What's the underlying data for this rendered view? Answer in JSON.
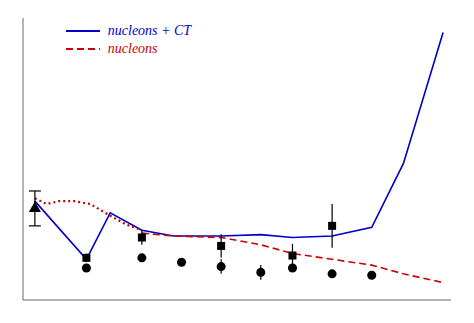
{
  "chart_data": {
    "type": "line",
    "tick_labels": false,
    "legend": "upper left",
    "xlim": [
      0.0,
      1.08
    ],
    "ylim": [
      0.38,
      1.35
    ],
    "xticks": [
      0,
      0.2,
      0.4,
      0.6,
      0.8,
      1.0
    ],
    "yticks": [
      0.4,
      0.5,
      0.6,
      0.7,
      0.8,
      0.9,
      1.0,
      1.1,
      1.2,
      1.3
    ],
    "series": [
      {
        "name": "nucleons + CT",
        "type": "line",
        "color": "#0000cc",
        "line_style": "solid",
        "x": [
          0.03,
          0.16,
          0.22,
          0.3,
          0.38,
          0.5,
          0.6,
          0.68,
          0.78,
          0.88,
          0.96,
          1.06
        ],
        "values": [
          0.72,
          0.52,
          0.68,
          0.62,
          0.6,
          0.6,
          0.605,
          0.595,
          0.6,
          0.63,
          0.85,
          1.3
        ]
      },
      {
        "name": "nucleons",
        "type": "line",
        "color": "#cc0000",
        "line_style": "dashed",
        "x": [
          0.3,
          0.38,
          0.5,
          0.6,
          0.68,
          0.78,
          0.88,
          0.96,
          1.06
        ],
        "values": [
          0.61,
          0.6,
          0.595,
          0.57,
          0.54,
          0.52,
          0.5,
          0.47,
          0.44
        ]
      },
      {
        "type": "line",
        "color": "#cc0000",
        "line_style": "dotted",
        "x": [
          0.03,
          0.06,
          0.09,
          0.13,
          0.17,
          0.22,
          0.26,
          0.3
        ],
        "values": [
          0.73,
          0.71,
          0.72,
          0.72,
          0.71,
          0.67,
          0.64,
          0.62
        ]
      },
      {
        "type": "scatter",
        "color": "#000000",
        "marker": "square",
        "x": [
          0.16,
          0.3,
          0.5,
          0.68,
          0.78
        ],
        "values": [
          0.525,
          0.595,
          0.566,
          0.533,
          0.635
        ],
        "error_low": [
          0.015,
          0.025,
          0.04,
          0.04,
          0.075
        ],
        "error_high": [
          0.015,
          0.025,
          0.04,
          0.04,
          0.075
        ]
      },
      {
        "type": "scatter",
        "color": "#000000",
        "marker": "circle",
        "x": [
          0.16,
          0.3,
          0.4,
          0.5,
          0.6,
          0.68,
          0.78,
          0.88
        ],
        "values": [
          0.49,
          0.525,
          0.51,
          0.495,
          0.475,
          0.49,
          0.47,
          0.465
        ],
        "error_low": [
          0.012,
          0.012,
          0.012,
          0.025,
          0.025,
          0.012,
          0.012,
          0.012
        ],
        "error_high": [
          0.012,
          0.012,
          0.012,
          0.025,
          0.025,
          0.012,
          0.012,
          0.012
        ]
      },
      {
        "type": "scatter",
        "color": "#000000",
        "marker": "triangle",
        "x": [
          0.03
        ],
        "values": [
          0.695
        ],
        "error_low": [
          0.06
        ],
        "error_high": [
          0.06
        ]
      }
    ]
  }
}
